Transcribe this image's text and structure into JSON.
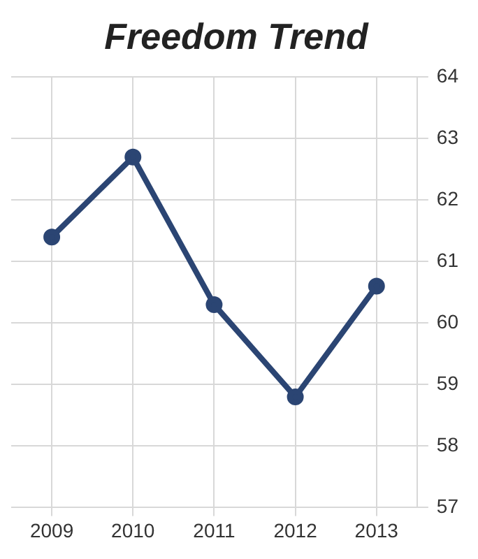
{
  "chart_data": {
    "type": "line",
    "title": "Freedom Trend",
    "categories": [
      "2009",
      "2010",
      "2011",
      "2012",
      "2013"
    ],
    "series": [
      {
        "color": "#2b4573",
        "values": [
          61.4,
          62.7,
          60.3,
          58.8,
          60.6
        ]
      }
    ],
    "ylim": [
      57,
      64
    ],
    "yticks": [
      57,
      58,
      59,
      60,
      61,
      62,
      63,
      64
    ],
    "grid": true,
    "legend": false,
    "marker": "circle",
    "line_style": "solid"
  }
}
